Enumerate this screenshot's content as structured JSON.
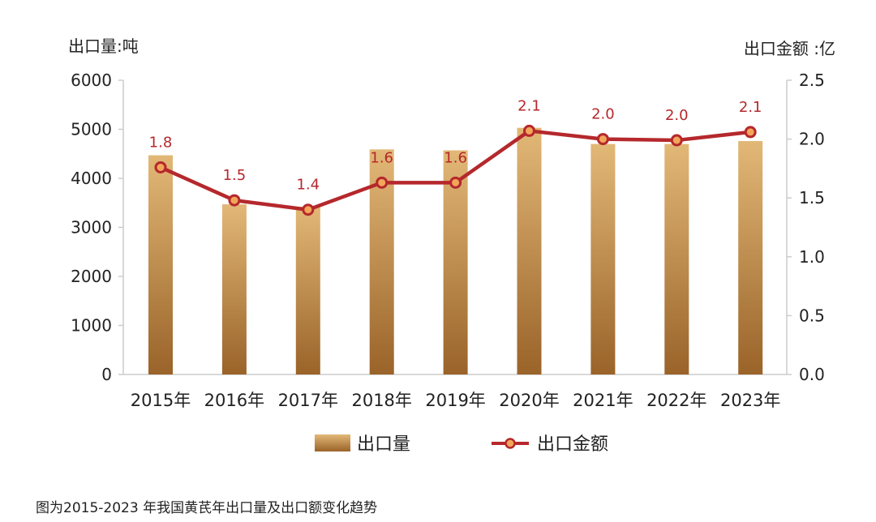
{
  "chart_data": {
    "type": "bar",
    "categories": [
      "2015年",
      "2016年",
      "2017年",
      "2018年",
      "2019年",
      "2020年",
      "2021年",
      "2022年",
      "2023年"
    ],
    "series": [
      {
        "name": "出口量",
        "type": "bar",
        "axis": "left",
        "values": [
          4470,
          3470,
          3420,
          4590,
          4570,
          5030,
          4700,
          4700,
          4760
        ]
      },
      {
        "name": "出口金额",
        "type": "line",
        "axis": "right",
        "values": [
          1.76,
          1.48,
          1.4,
          1.63,
          1.63,
          2.07,
          2.0,
          1.99,
          2.06
        ],
        "labels": [
          "1.8",
          "1.5",
          "1.4",
          "1.6",
          "1.6",
          "2.1",
          "2.0",
          "2.0",
          "2.1"
        ]
      }
    ],
    "ylabel": "出口量:吨",
    "y2label": "出口金额 :亿",
    "ylim": [
      0,
      6000
    ],
    "y2lim": [
      0,
      2.5
    ],
    "yticks": [
      "0",
      "1000",
      "2000",
      "3000",
      "4000",
      "5000",
      "6000"
    ],
    "y2ticks": [
      "0.0",
      "0.5",
      "1.0",
      "1.5",
      "2.0",
      "2.5"
    ],
    "grid": false,
    "legend": "bottom-center",
    "colors": {
      "bar_top": "#e2b877",
      "bar_bottom": "#9a6329",
      "line": "#b5282c",
      "marker_fill": "#f2a65a",
      "axis": "#cccccc"
    }
  },
  "caption": "图为2015-2023 年我国黄芪年出口量及出口额变化趋势"
}
